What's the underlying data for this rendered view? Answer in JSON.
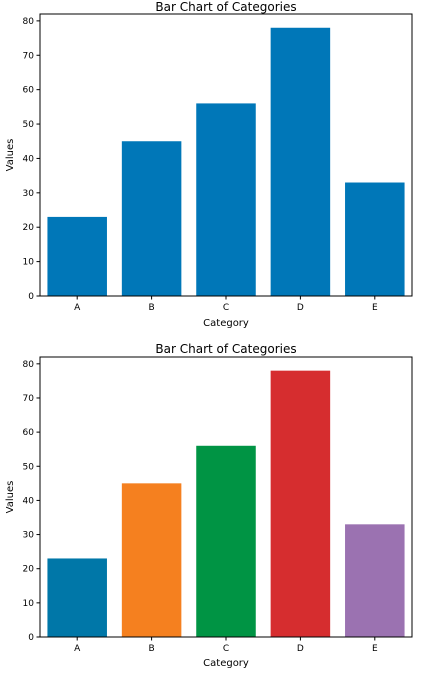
{
  "chart_data": [
    {
      "type": "bar",
      "title": "Bar Chart of Categories",
      "xlabel": "Category",
      "ylabel": "Values",
      "categories": [
        "A",
        "B",
        "C",
        "D",
        "E"
      ],
      "values": [
        23,
        45,
        56,
        78,
        33
      ],
      "ylim": [
        0,
        82
      ],
      "yticks": [
        0,
        10,
        20,
        30,
        40,
        50,
        60,
        70,
        80
      ],
      "grid": false,
      "colors": [
        "#0077b8",
        "#0077b8",
        "#0077b8",
        "#0077b8",
        "#0077b8"
      ]
    },
    {
      "type": "bar",
      "title": "Bar Chart of Categories",
      "xlabel": "Category",
      "ylabel": "Values",
      "categories": [
        "A",
        "B",
        "C",
        "D",
        "E"
      ],
      "values": [
        23,
        45,
        56,
        78,
        33
      ],
      "ylim": [
        0,
        82
      ],
      "yticks": [
        0,
        10,
        20,
        30,
        40,
        50,
        60,
        70,
        80
      ],
      "grid": false,
      "colors": [
        "#0077a8",
        "#f5801f",
        "#009444",
        "#d62d2f",
        "#9b72b1"
      ]
    }
  ]
}
